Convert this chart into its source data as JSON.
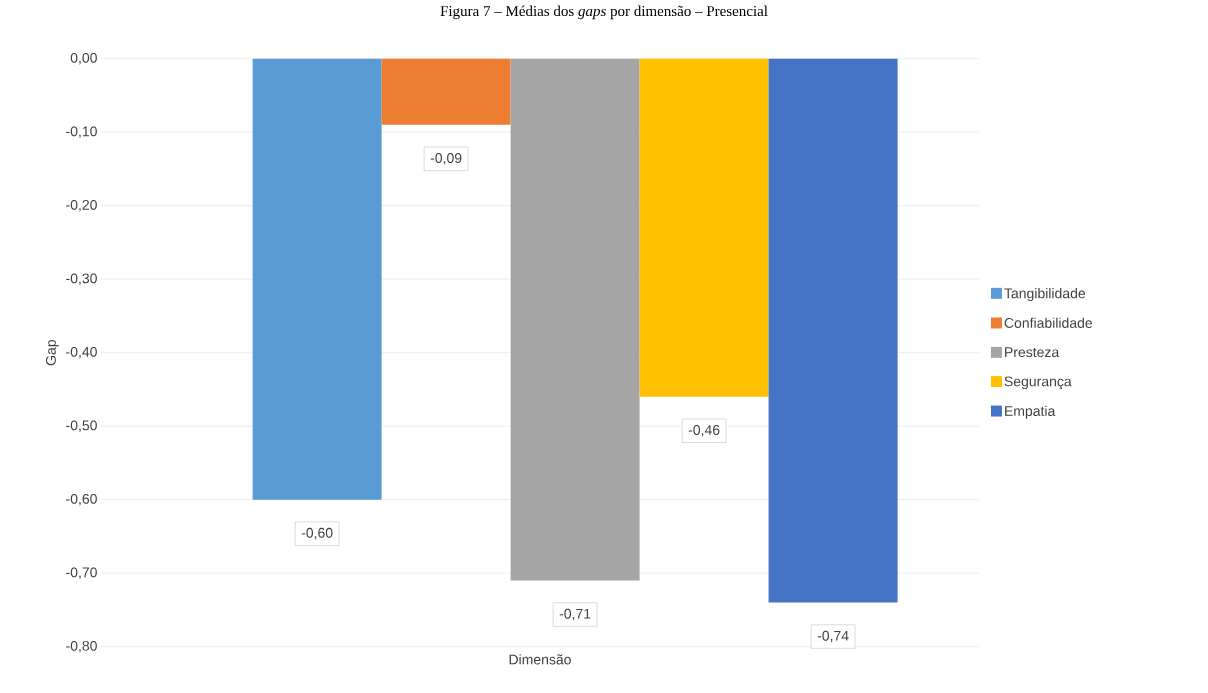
{
  "chart_data": {
    "type": "bar",
    "title": "Figura 7 – Médias dos *gaps* por dimensão – Presencial",
    "xlabel": "Dimensão",
    "ylabel": "Gap",
    "categories": [
      null
    ],
    "series": [
      {
        "name": "Tangibilidade",
        "color": "#5b9bd5",
        "values": [
          -0.6
        ],
        "value_labels": [
          "-0,60"
        ]
      },
      {
        "name": "Confiabilidade",
        "color": "#ed7d31",
        "values": [
          -0.09
        ],
        "value_labels": [
          "-0,09"
        ]
      },
      {
        "name": "Presteza",
        "color": "#a5a5a5",
        "values": [
          -0.71
        ],
        "value_labels": [
          "-0,71"
        ]
      },
      {
        "name": "Segurança",
        "color": "#ffc000",
        "values": [
          -0.46
        ],
        "value_labels": [
          "-0,46"
        ]
      },
      {
        "name": "Empatia",
        "color": "#4472c4",
        "values": [
          -0.74
        ],
        "value_labels": [
          "-0,74"
        ]
      }
    ],
    "ylim": [
      -0.8,
      0
    ],
    "yticks": [
      {
        "value": 0,
        "label": "0,00"
      },
      {
        "value": -0.1,
        "label": "-0,10"
      },
      {
        "value": -0.2,
        "label": "-0,20"
      },
      {
        "value": -0.3,
        "label": "-0,30"
      },
      {
        "value": -0.4,
        "label": "-0,40"
      },
      {
        "value": -0.5,
        "label": "-0,50"
      },
      {
        "value": -0.6,
        "label": "-0,60"
      },
      {
        "value": -0.7,
        "label": "-0,70"
      },
      {
        "value": -0.8,
        "label": "-0,80"
      }
    ],
    "grid": "y",
    "legend": "right"
  }
}
